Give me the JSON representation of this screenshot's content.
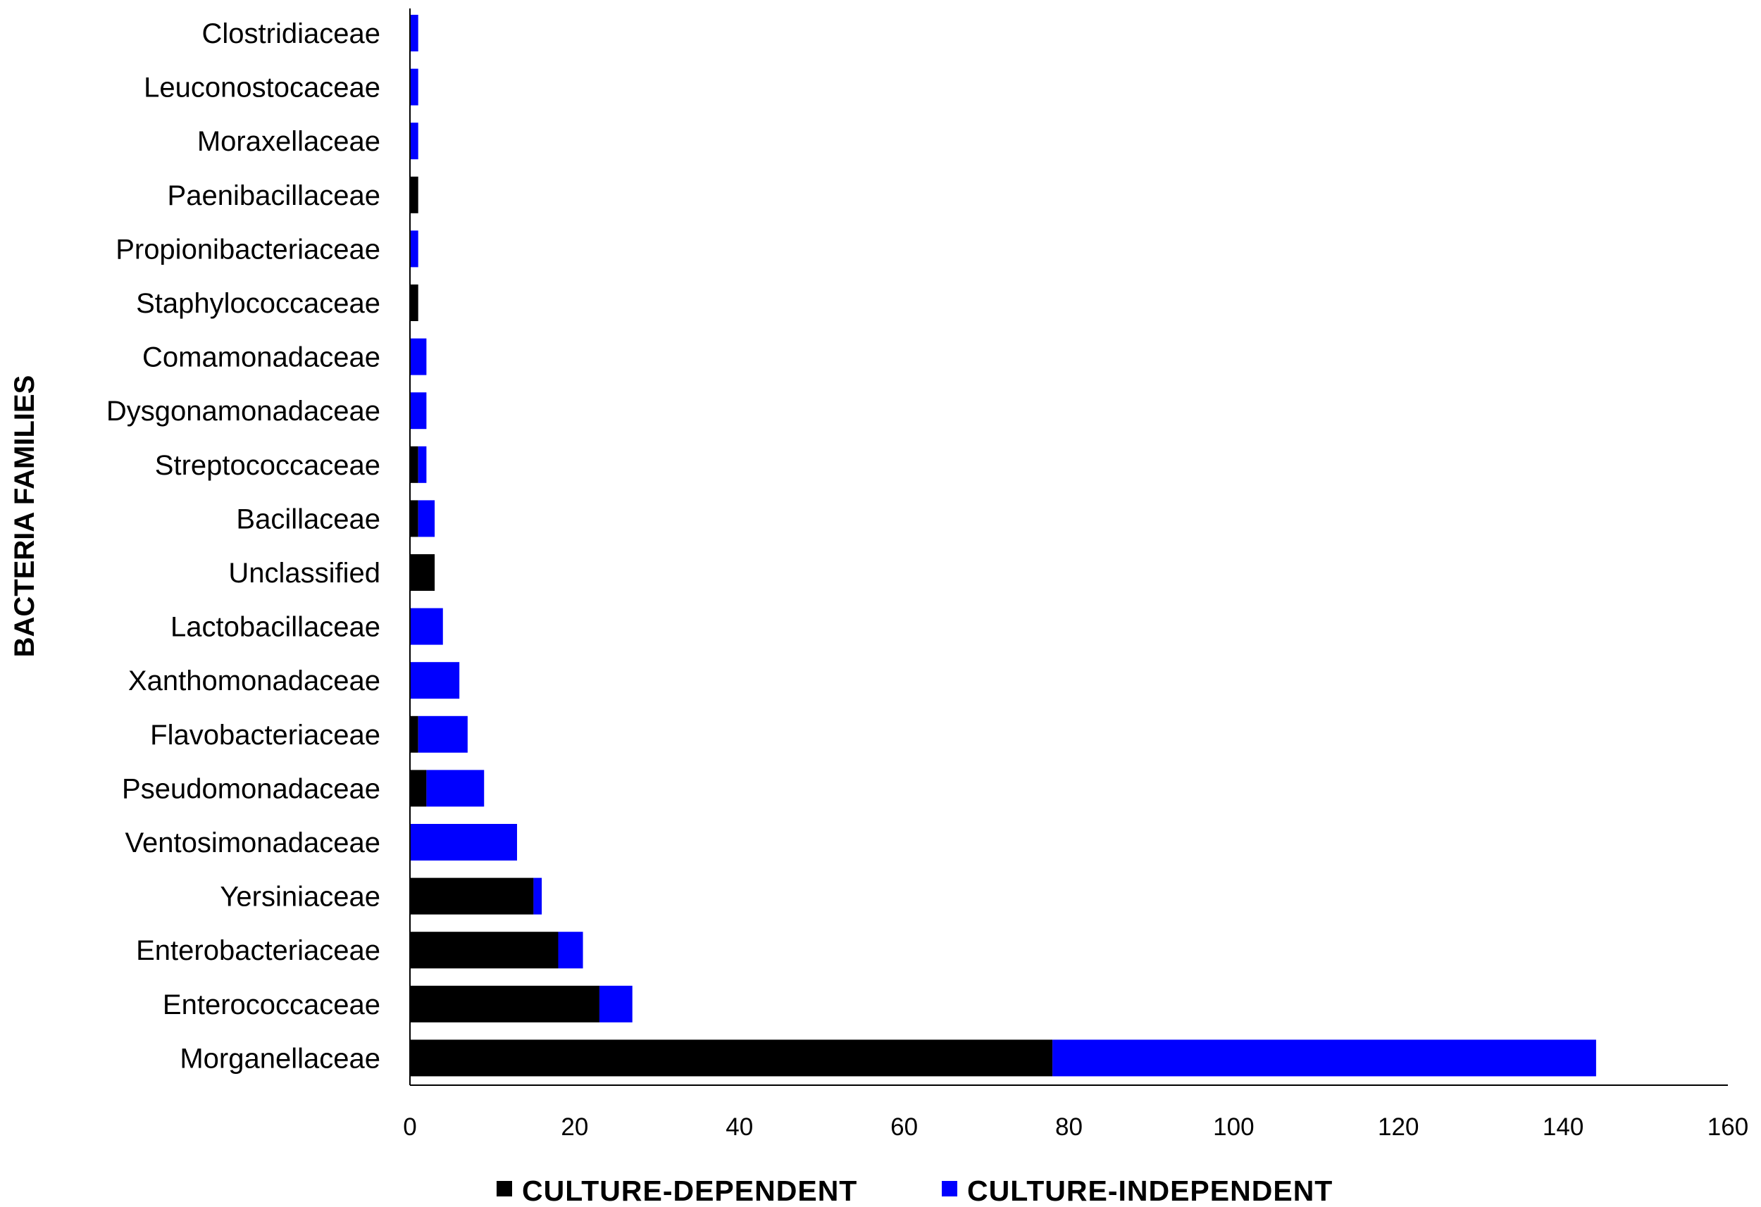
{
  "chart_data": {
    "type": "bar",
    "orientation": "horizontal",
    "stacked": true,
    "title": "",
    "xlabel": "",
    "ylabel": "BACTERIA FAMILIES",
    "xlim": [
      0,
      160
    ],
    "xticks": [
      "0",
      "20",
      "40",
      "60",
      "80",
      "100",
      "120",
      "140",
      "160"
    ],
    "grid": false,
    "legend_position": "bottom",
    "categories": [
      "Clostridiaceae",
      "Leuconostocaceae",
      "Moraxellaceae",
      "Paenibacillaceae",
      "Propionibacteriaceae",
      "Staphylococcaceae",
      "Comamonadaceae",
      "Dysgonamonadaceae",
      "Streptococcaceae",
      "Bacillaceae",
      "Unclassified",
      "Lactobacillaceae",
      "Xanthomonadaceae",
      "Flavobacteriaceae",
      "Pseudomonadaceae",
      "Ventosimonadaceae",
      "Yersiniaceae",
      "Enterobacteriaceae",
      "Enterococcaceae",
      "Morganellaceae"
    ],
    "series": [
      {
        "name": "CULTURE-DEPENDENT",
        "color": "#000000",
        "values": [
          0,
          0,
          0,
          1,
          0,
          1,
          0,
          0,
          1,
          1,
          3,
          0,
          0,
          1,
          2,
          0,
          15,
          18,
          23,
          78
        ]
      },
      {
        "name": "CULTURE-INDEPENDENT",
        "color": "#0000ff",
        "values": [
          1,
          1,
          1,
          0,
          1,
          0,
          2,
          2,
          1,
          2,
          0,
          4,
          6,
          6,
          7,
          13,
          1,
          3,
          4,
          66
        ]
      }
    ]
  }
}
